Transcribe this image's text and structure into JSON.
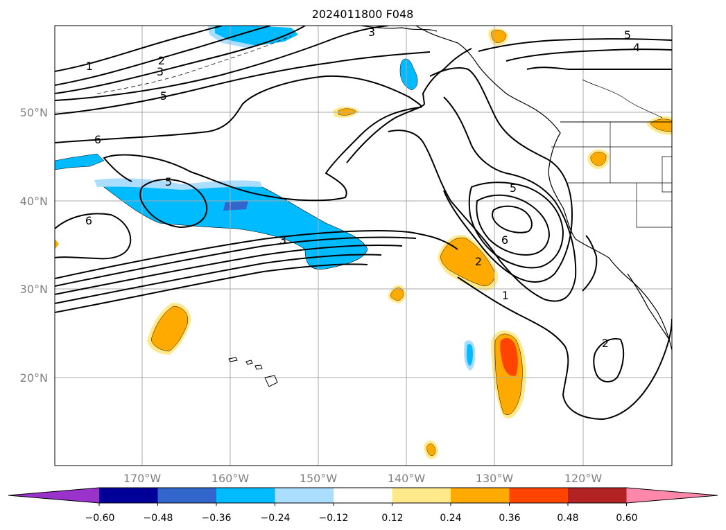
{
  "title": "2024011800 F048",
  "map": {
    "lat_labels": [
      "50°N",
      "40°N",
      "30°N",
      "20°N"
    ],
    "lon_labels": [
      "170°W",
      "160°W",
      "150°W",
      "140°W",
      "130°W",
      "120°W"
    ],
    "contour_color": "#000000",
    "gridline_color": "#aaaaaa",
    "contour_labels": [
      "1",
      "2",
      "3",
      "5",
      "6",
      "5",
      "6",
      "3",
      "3",
      "5",
      "4",
      "5",
      "6",
      "2",
      "1",
      "2"
    ]
  },
  "colorbar": {
    "tick_labels": [
      "−0.60",
      "−0.48",
      "−0.36",
      "−0.24",
      "−0.12",
      "0.12",
      "0.24",
      "0.36",
      "0.48",
      "0.60"
    ],
    "colors": [
      "#9933cc",
      "#000099",
      "#3366cc",
      "#00bbff",
      "#aaddff",
      "#ffffff",
      "#ffe98a",
      "#ffaa00",
      "#ff4400",
      "#b22222",
      "#ff88aa"
    ]
  }
}
